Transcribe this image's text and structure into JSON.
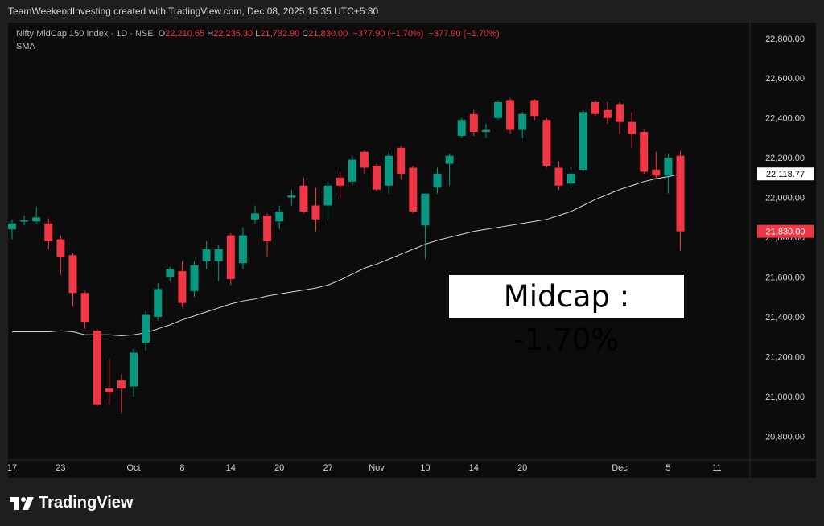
{
  "header": {
    "credit": "TeamWeekendInvesting created with TradingView.com, Dec 08, 2025 15:35 UTC+5:30"
  },
  "legend": {
    "symbol": "Nifty MidCap 150 Index · 1D · NSE",
    "o_label": "O",
    "o": "22,210.65",
    "h_label": "H",
    "h": "22,235.30",
    "l_label": "L",
    "l": "21,732.90",
    "c_label": "C",
    "c": "21,830.00",
    "change1": "−377.90 (−1.70%)",
    "change2": "−377.90 (−1.70%)",
    "sma_label": "SMA"
  },
  "callout": "Midcap : -1.70%",
  "brand": {
    "name": "TradingView",
    "logo_icon": "tradingview-logo-icon"
  },
  "colors": {
    "up": "#089981",
    "down": "#f23645",
    "sma": "#d9d9d9",
    "axis_text": "#d1d4dc",
    "background": "#0c0c0c"
  },
  "chart_data": {
    "type": "candlestick",
    "title": "",
    "ylim": [
      20680,
      22880
    ],
    "y_ticks": [
      "22,800.00",
      "22,600.00",
      "22,400.00",
      "22,200.00",
      "22,000.00",
      "21,800.00",
      "21,600.00",
      "21,400.00",
      "21,200.00",
      "21,000.00",
      "20,800.00"
    ],
    "y_tick_values": [
      22800,
      22600,
      22400,
      22200,
      22000,
      21800,
      21600,
      21400,
      21200,
      21000,
      20800
    ],
    "x_ticks": [
      {
        "label": "17",
        "index": 0
      },
      {
        "label": "23",
        "index": 4
      },
      {
        "label": "Oct",
        "index": 10
      },
      {
        "label": "8",
        "index": 14
      },
      {
        "label": "14",
        "index": 18
      },
      {
        "label": "20",
        "index": 22
      },
      {
        "label": "27",
        "index": 26
      },
      {
        "label": "Nov",
        "index": 30
      },
      {
        "label": "10",
        "index": 34
      },
      {
        "label": "14",
        "index": 38
      },
      {
        "label": "20",
        "index": 42
      },
      {
        "label": "Dec",
        "index": 50
      },
      {
        "label": "5",
        "index": 54
      },
      {
        "label": "11",
        "index": 58
      }
    ],
    "candles": [
      {
        "o": 21840,
        "h": 21890,
        "l": 21790,
        "c": 21870
      },
      {
        "o": 21880,
        "h": 21910,
        "l": 21860,
        "c": 21885
      },
      {
        "o": 21880,
        "h": 21955,
        "l": 21870,
        "c": 21900
      },
      {
        "o": 21870,
        "h": 21895,
        "l": 21740,
        "c": 21780
      },
      {
        "o": 21790,
        "h": 21810,
        "l": 21610,
        "c": 21700
      },
      {
        "o": 21710,
        "h": 21720,
        "l": 21450,
        "c": 21520
      },
      {
        "o": 21520,
        "h": 21530,
        "l": 21340,
        "c": 21375
      },
      {
        "o": 21330,
        "h": 21340,
        "l": 20950,
        "c": 20960
      },
      {
        "o": 21040,
        "h": 21190,
        "l": 20960,
        "c": 21020
      },
      {
        "o": 21080,
        "h": 21110,
        "l": 20910,
        "c": 21040
      },
      {
        "o": 21050,
        "h": 21240,
        "l": 21000,
        "c": 21220
      },
      {
        "o": 21270,
        "h": 21430,
        "l": 21230,
        "c": 21410
      },
      {
        "o": 21400,
        "h": 21570,
        "l": 21380,
        "c": 21540
      },
      {
        "o": 21600,
        "h": 21650,
        "l": 21580,
        "c": 21640
      },
      {
        "o": 21630,
        "h": 21680,
        "l": 21450,
        "c": 21470
      },
      {
        "o": 21530,
        "h": 21680,
        "l": 21500,
        "c": 21660
      },
      {
        "o": 21680,
        "h": 21780,
        "l": 21640,
        "c": 21740
      },
      {
        "o": 21680,
        "h": 21760,
        "l": 21580,
        "c": 21740
      },
      {
        "o": 21810,
        "h": 21820,
        "l": 21560,
        "c": 21590
      },
      {
        "o": 21670,
        "h": 21850,
        "l": 21640,
        "c": 21810
      },
      {
        "o": 21890,
        "h": 21960,
        "l": 21870,
        "c": 21920
      },
      {
        "o": 21910,
        "h": 21920,
        "l": 21700,
        "c": 21780
      },
      {
        "o": 21880,
        "h": 21960,
        "l": 21840,
        "c": 21930
      },
      {
        "o": 22000,
        "h": 22040,
        "l": 21960,
        "c": 22010
      },
      {
        "o": 22060,
        "h": 22100,
        "l": 21920,
        "c": 21930
      },
      {
        "o": 21960,
        "h": 22050,
        "l": 21830,
        "c": 21890
      },
      {
        "o": 21960,
        "h": 22080,
        "l": 21880,
        "c": 22060
      },
      {
        "o": 22100,
        "h": 22130,
        "l": 22000,
        "c": 22060
      },
      {
        "o": 22080,
        "h": 22210,
        "l": 22060,
        "c": 22190
      },
      {
        "o": 22230,
        "h": 22240,
        "l": 22120,
        "c": 22150
      },
      {
        "o": 22160,
        "h": 22170,
        "l": 22030,
        "c": 22040
      },
      {
        "o": 22060,
        "h": 22230,
        "l": 22020,
        "c": 22210
      },
      {
        "o": 22250,
        "h": 22260,
        "l": 22090,
        "c": 22120
      },
      {
        "o": 22150,
        "h": 22160,
        "l": 21920,
        "c": 21930
      },
      {
        "o": 21860,
        "h": 22000,
        "l": 21690,
        "c": 22020
      },
      {
        "o": 22050,
        "h": 22150,
        "l": 22020,
        "c": 22120
      },
      {
        "o": 22170,
        "h": 22220,
        "l": 22060,
        "c": 22210
      },
      {
        "o": 22310,
        "h": 22400,
        "l": 22300,
        "c": 22390
      },
      {
        "o": 22420,
        "h": 22440,
        "l": 22310,
        "c": 22330
      },
      {
        "o": 22330,
        "h": 22370,
        "l": 22300,
        "c": 22340
      },
      {
        "o": 22400,
        "h": 22490,
        "l": 22390,
        "c": 22480
      },
      {
        "o": 22490,
        "h": 22500,
        "l": 22320,
        "c": 22340
      },
      {
        "o": 22340,
        "h": 22430,
        "l": 22300,
        "c": 22420
      },
      {
        "o": 22490,
        "h": 22495,
        "l": 22390,
        "c": 22410
      },
      {
        "o": 22390,
        "h": 22400,
        "l": 22150,
        "c": 22160
      },
      {
        "o": 22150,
        "h": 22180,
        "l": 22040,
        "c": 22060
      },
      {
        "o": 22070,
        "h": 22130,
        "l": 22050,
        "c": 22120
      },
      {
        "o": 22140,
        "h": 22440,
        "l": 22130,
        "c": 22430
      },
      {
        "o": 22480,
        "h": 22490,
        "l": 22410,
        "c": 22420
      },
      {
        "o": 22440,
        "h": 22480,
        "l": 22370,
        "c": 22400
      },
      {
        "o": 22470,
        "h": 22480,
        "l": 22320,
        "c": 22380
      },
      {
        "o": 22380,
        "h": 22430,
        "l": 22250,
        "c": 22320
      },
      {
        "o": 22330,
        "h": 22340,
        "l": 22120,
        "c": 22130
      },
      {
        "o": 22140,
        "h": 22230,
        "l": 22100,
        "c": 22110
      },
      {
        "o": 22110,
        "h": 22220,
        "l": 22020,
        "c": 22200
      },
      {
        "o": 22210,
        "h": 22235,
        "l": 21733,
        "c": 21830
      }
    ],
    "sma": {
      "name": "SMA",
      "last_value_label": "22,118.77",
      "values": [
        21325,
        21325,
        21325,
        21325,
        21330,
        21325,
        21310,
        21310,
        21310,
        21305,
        21310,
        21320,
        21340,
        21360,
        21385,
        21405,
        21425,
        21445,
        21465,
        21480,
        21490,
        21505,
        21515,
        21525,
        21535,
        21545,
        21560,
        21585,
        21615,
        21645,
        21665,
        21690,
        21715,
        21740,
        21765,
        21785,
        21800,
        21815,
        21830,
        21840,
        21850,
        21860,
        21870,
        21880,
        21890,
        21910,
        21930,
        21960,
        21990,
        22015,
        22040,
        22060,
        22080,
        22095,
        22105,
        22118.77
      ]
    },
    "last_price_label": "21,830.00",
    "last_price": 21830
  }
}
